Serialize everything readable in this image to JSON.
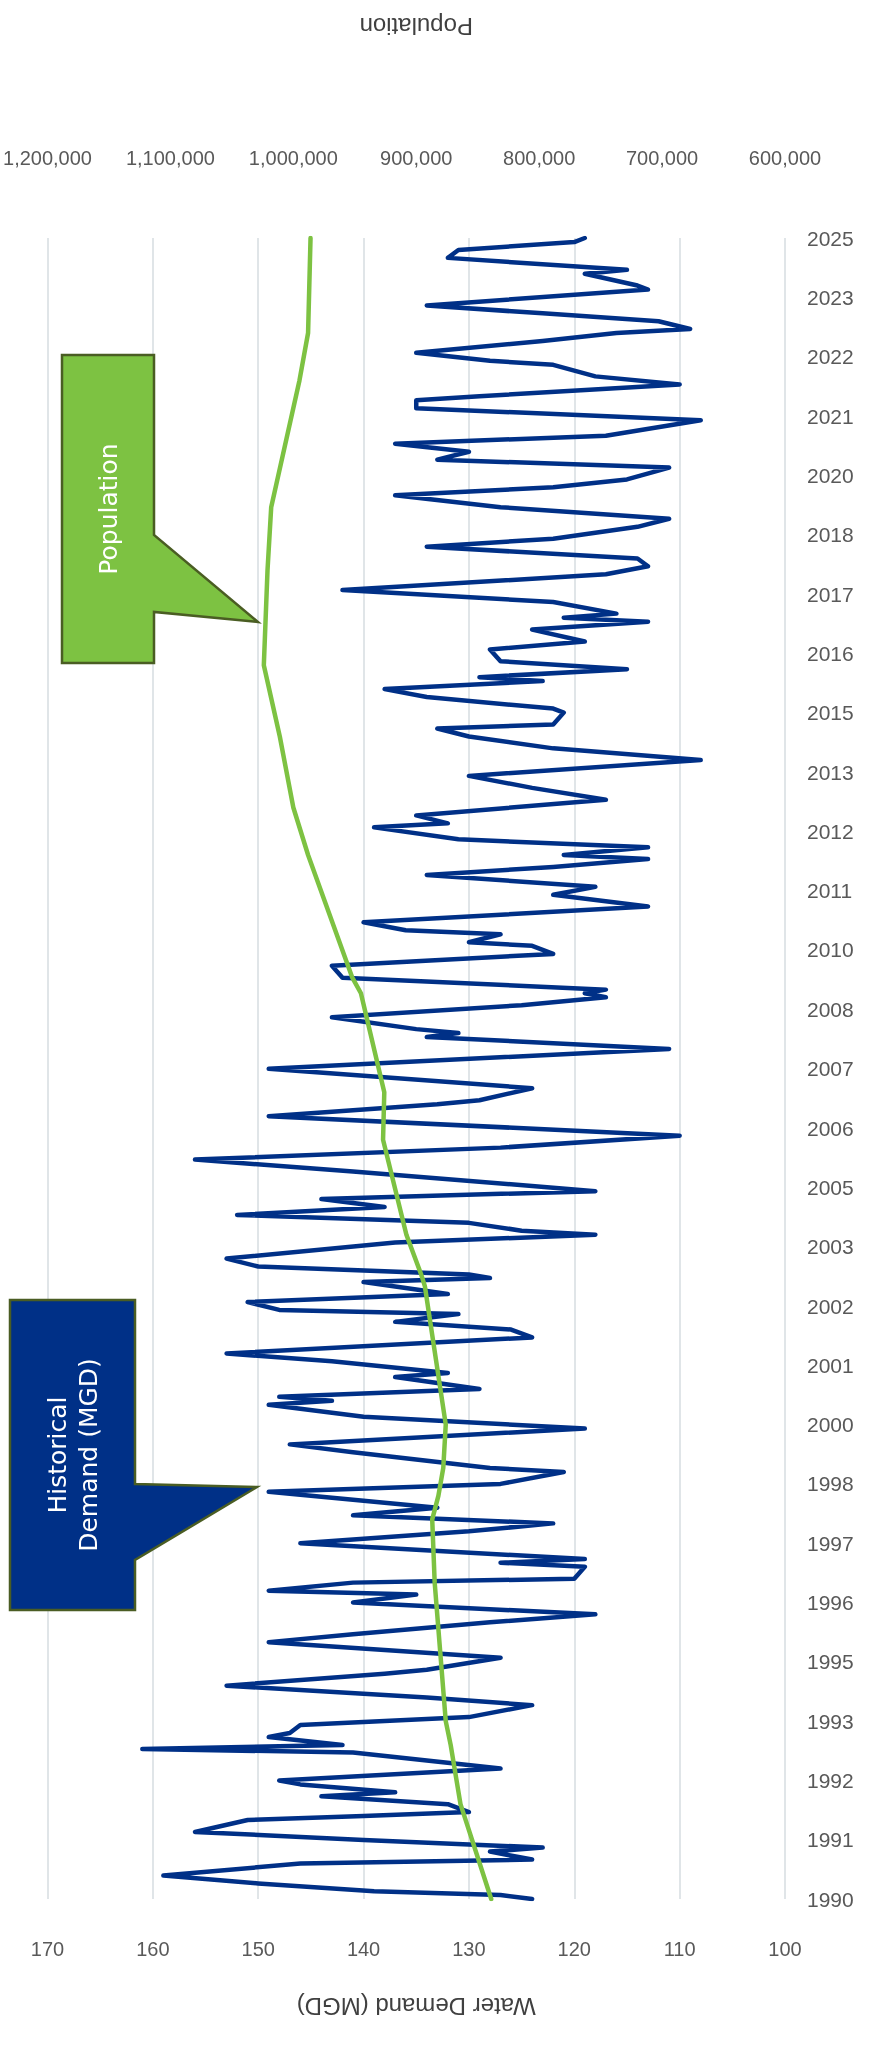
{
  "chart_data": {
    "type": "line",
    "orientation": "horizontal",
    "xlabel": "Water Demand (MGD)",
    "x2label": "Population",
    "ylim": [
      "1990-01",
      "2025-01"
    ],
    "yticks": [
      {
        "value": "1990-01",
        "label": "1990"
      },
      {
        "value": "1991-04",
        "label": "1991"
      },
      {
        "value": "1992-07",
        "label": "1992"
      },
      {
        "value": "1993-10",
        "label": "1993"
      },
      {
        "value": "1995-01",
        "label": "1995"
      },
      {
        "value": "1996-04",
        "label": "1996"
      },
      {
        "value": "1997-07",
        "label": "1997"
      },
      {
        "value": "1998-10",
        "label": "1998"
      },
      {
        "value": "2000-01",
        "label": "2000"
      },
      {
        "value": "2001-04",
        "label": "2001"
      },
      {
        "value": "2002-07",
        "label": "2002"
      },
      {
        "value": "2003-10",
        "label": "2003"
      },
      {
        "value": "2005-01",
        "label": "2005"
      },
      {
        "value": "2006-04",
        "label": "2006"
      },
      {
        "value": "2007-07",
        "label": "2007"
      },
      {
        "value": "2008-10",
        "label": "2008"
      },
      {
        "value": "2010-01",
        "label": "2010"
      },
      {
        "value": "2011-04",
        "label": "2011"
      },
      {
        "value": "2012-07",
        "label": "2012"
      },
      {
        "value": "2013-10",
        "label": "2013"
      },
      {
        "value": "2015-01",
        "label": "2015"
      },
      {
        "value": "2016-04",
        "label": "2016"
      },
      {
        "value": "2017-07",
        "label": "2017"
      },
      {
        "value": "2018-10",
        "label": "2018"
      },
      {
        "value": "2020-01",
        "label": "2020"
      },
      {
        "value": "2021-04",
        "label": "2021"
      },
      {
        "value": "2022-07",
        "label": "2022"
      },
      {
        "value": "2023-10",
        "label": "2023"
      },
      {
        "value": "2025-01",
        "label": "2025"
      }
    ],
    "xlim": [
      170,
      100
    ],
    "xticks": [
      170,
      160,
      150,
      140,
      130,
      120,
      110,
      100
    ],
    "x2lim": [
      1200000,
      600000
    ],
    "x2ticks": [
      {
        "value": 600000,
        "label": "600,000"
      },
      {
        "value": 700000,
        "label": "700,000"
      },
      {
        "value": 800000,
        "label": "800,000"
      },
      {
        "value": 900000,
        "label": "900,000"
      },
      {
        "value": 1000000,
        "label": "1,000,000"
      },
      {
        "value": 1100000,
        "label": "1,100,000"
      },
      {
        "value": 1200000,
        "label": "1,200,000"
      }
    ],
    "grid": "x",
    "marker": "none",
    "annotations": [
      "Historical Demand (MGD)",
      "Population"
    ],
    "series": [
      {
        "color": "#003087",
        "x": [
          "1990-01",
          "1990-02",
          "1990-03",
          "1990-05",
          "1990-07",
          "1990-10",
          "1990-11",
          "1991-01",
          "1991-02",
          "1991-04",
          "1991-06",
          "1991-09",
          "1991-10",
          "1991-11",
          "1992-01",
          "1992-03",
          "1992-04",
          "1992-06",
          "1992-07",
          "1992-10",
          "1993-02",
          "1993-03",
          "1993-04",
          "1993-06",
          "1993-07",
          "1993-09",
          "1993-11",
          "1994-02",
          "1994-04",
          "1994-07",
          "1994-10",
          "1994-11",
          "1995-02",
          "1995-06",
          "1995-08",
          "1995-11",
          "1996-01",
          "1996-04",
          "1996-06",
          "1996-07",
          "1996-09",
          "1996-10",
          "1997-01",
          "1997-02",
          "1997-03",
          "1997-07",
          "1997-10",
          "1997-12",
          "1998-02",
          "1998-04",
          "1998-08",
          "1998-10",
          "1999-01",
          "1999-02",
          "1999-06",
          "1999-08",
          "1999-12",
          "2000-03",
          "2000-06",
          "2000-07",
          "2000-08",
          "2000-10",
          "2001-01",
          "2001-02",
          "2001-05",
          "2001-07",
          "2001-11",
          "2002-01",
          "2002-03",
          "2002-05",
          "2002-06",
          "2002-08",
          "2002-10",
          "2003-01",
          "2003-02",
          "2003-03",
          "2003-05",
          "2003-07",
          "2003-11",
          "2004-01",
          "2004-02",
          "2004-04",
          "2004-06",
          "2004-08",
          "2004-10",
          "2004-12",
          "2005-05",
          "2005-08",
          "2005-11",
          "2006-02",
          "2006-07",
          "2006-10",
          "2006-11",
          "2007-02",
          "2007-07",
          "2007-12",
          "2008-03",
          "2008-04",
          "2008-05",
          "2008-08",
          "2008-11",
          "2009-01",
          "2009-02",
          "2009-03",
          "2009-06",
          "2009-09",
          "2009-12",
          "2010-02",
          "2010-03",
          "2010-05",
          "2010-06",
          "2010-08",
          "2010-12",
          "2011-03",
          "2011-05",
          "2011-08",
          "2011-10",
          "2011-12",
          "2012-01",
          "2012-03",
          "2012-05",
          "2012-08",
          "2012-09",
          "2012-11",
          "2013-03",
          "2013-06",
          "2013-09",
          "2014-01",
          "2014-04",
          "2014-07",
          "2014-09",
          "2014-10",
          "2015-01",
          "2015-02",
          "2015-05",
          "2015-07",
          "2015-09",
          "2015-10",
          "2015-12",
          "2016-02",
          "2016-05",
          "2016-07",
          "2016-10",
          "2016-12",
          "2017-01",
          "2017-02",
          "2017-05",
          "2017-08",
          "2017-12",
          "2018-02",
          "2018-04",
          "2018-07",
          "2018-09",
          "2018-12",
          "2019-02",
          "2019-05",
          "2019-08",
          "2019-10",
          "2019-12",
          "2020-03",
          "2020-05",
          "2020-07",
          "2020-09",
          "2020-11",
          "2021-03",
          "2021-06",
          "2021-08",
          "2021-09",
          "2021-12",
          "2022-02",
          "2022-05",
          "2022-06",
          "2022-08",
          "2022-11",
          "2023-01",
          "2023-02",
          "2023-04",
          "2023-06",
          "2023-08",
          "2023-12",
          "2024-01",
          "2024-04",
          "2024-05",
          "2024-08",
          "2024-10",
          "2024-12",
          "2025-01"
        ],
        "values": [
          124,
          127,
          139,
          150,
          159,
          146,
          124,
          128,
          123,
          140,
          156,
          151,
          140,
          130,
          132,
          144,
          137,
          146,
          148,
          127,
          141,
          161,
          142,
          149,
          147,
          146,
          130,
          124,
          134,
          153,
          138,
          134,
          127,
          149,
          141,
          128,
          118,
          141,
          135,
          149,
          141,
          120,
          119,
          127,
          119,
          146,
          130,
          122,
          141,
          133,
          149,
          127,
          121,
          128,
          141,
          147,
          119,
          140,
          149,
          143,
          148,
          129,
          137,
          132,
          143,
          153,
          124,
          126,
          137,
          131,
          148,
          151,
          132,
          140,
          128,
          130,
          150,
          153,
          137,
          118,
          125,
          130,
          152,
          138,
          144,
          118,
          141,
          156,
          127,
          110,
          149,
          133,
          129,
          124,
          149,
          111,
          134,
          131,
          135,
          143,
          125,
          117,
          119,
          117,
          142,
          143,
          122,
          124,
          130,
          127,
          136,
          140,
          113,
          122,
          118,
          134,
          122,
          113,
          121,
          113,
          131,
          139,
          132,
          135,
          117,
          124,
          130,
          108,
          122,
          130,
          133,
          122,
          121,
          122,
          134,
          138,
          123,
          129,
          115,
          127,
          128,
          119,
          124,
          113,
          121,
          116,
          122,
          142,
          117,
          113,
          114,
          134,
          122,
          114,
          111,
          127,
          137,
          122,
          115,
          111,
          133,
          130,
          137,
          117,
          108,
          135,
          135,
          129,
          110,
          118,
          122,
          128,
          135,
          123,
          116,
          109,
          112,
          123,
          134,
          113,
          114,
          119,
          115,
          132,
          131,
          120,
          119
        ]
      },
      {
        "color": "#7dc242",
        "axis": "x2",
        "x": [
          "1990-01",
          "1992-01",
          "1993-04",
          "1993-10",
          "1996-09",
          "1998-01",
          "1998-07",
          "1999-02",
          "2000-01",
          "2002-12",
          "2003-03",
          "2004-01",
          "2006-01",
          "2007-01",
          "2009-02",
          "2009-06",
          "2012-01",
          "2013-01",
          "2014-07",
          "2016-01",
          "2018-01",
          "2019-05",
          "2022-01",
          "2023-01",
          "2025-01"
        ],
        "values": [
          839000,
          864000,
          872000,
          876000,
          885000,
          887000,
          882000,
          878000,
          876000,
          893000,
          896000,
          908000,
          927000,
          926000,
          945000,
          952000,
          988000,
          1000000,
          1011000,
          1024000,
          1021000,
          1018000,
          995000,
          988000,
          986000
        ]
      }
    ]
  }
}
